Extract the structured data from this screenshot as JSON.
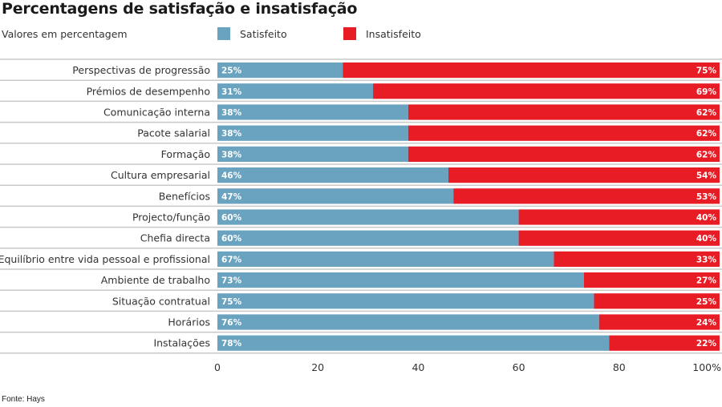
{
  "title": "Percentagens de satisfação e insatisfação",
  "subtitle": "Valores em percentagem",
  "footer": "Fonte: Hays",
  "colors": {
    "satisfied": "#6aa3bf",
    "dissatisfied": "#e81c24",
    "rule": "#c8c8c8"
  },
  "legend": [
    {
      "label": "Satisfeito",
      "color": "#6aa3bf"
    },
    {
      "label": "Insatisfeito",
      "color": "#e81c24"
    }
  ],
  "chart_data": {
    "type": "bar",
    "orientation": "horizontal",
    "stacked": true,
    "title": "Percentagens de satisfação e insatisfação",
    "subtitle": "Valores em percentagem",
    "xlabel": "",
    "ylabel": "",
    "xlim": [
      0,
      100
    ],
    "x_ticks": [
      "0",
      "20",
      "40",
      "60",
      "80",
      "100%"
    ],
    "x_tick_values": [
      0,
      20,
      40,
      60,
      80,
      100
    ],
    "legend_position": "top",
    "grid": false,
    "categories": [
      "Perspectivas de progressão",
      "Prémios de desempenho",
      "Comunicação interna",
      "Pacote salarial",
      "Formação",
      "Cultura empresarial",
      "Benefícios",
      "Projecto/função",
      "Chefia directa",
      "Equilíbrio entre vida pessoal e profissional",
      "Ambiente de trabalho",
      "Situação contratual",
      "Horários",
      "Instalações"
    ],
    "series": [
      {
        "name": "Satisfeito",
        "values": [
          25,
          31,
          38,
          38,
          38,
          46,
          47,
          60,
          60,
          67,
          73,
          75,
          76,
          78
        ]
      },
      {
        "name": "Insatisfeito",
        "values": [
          75,
          69,
          62,
          62,
          62,
          54,
          53,
          40,
          40,
          33,
          27,
          25,
          24,
          22
        ]
      }
    ],
    "source": "Fonte: Hays"
  }
}
